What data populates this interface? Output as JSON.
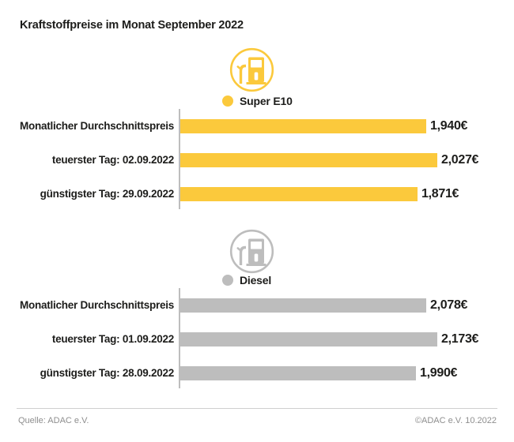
{
  "title": "Kraftstoffpreise im Monat September 2022",
  "colors": {
    "super_e10": "#FBC93C",
    "diesel": "#BDBDBD",
    "text": "#1D1D1B",
    "axis_line": "#BDBDBD",
    "footer_text": "#8E8E8E"
  },
  "chart_data": [
    {
      "type": "bar",
      "title": "Super E10",
      "icon": "fuel-pump-icon",
      "color": "#FBC93C",
      "legend_position": "top",
      "categories": [
        "Monatlicher Durchschnittspreis",
        "teuerster Tag: 02.09.2022",
        "günstigster Tag: 29.09.2022"
      ],
      "values": [
        1.94,
        2.027,
        1.871
      ],
      "value_labels": [
        "1,940€",
        "2,027€",
        "1,871€"
      ]
    },
    {
      "type": "bar",
      "title": "Diesel",
      "icon": "fuel-pump-icon",
      "color": "#BDBDBD",
      "legend_position": "top",
      "categories": [
        "Monatlicher Durchschnittspreis",
        "teuerster Tag: 01.09.2022",
        "günstigster Tag: 28.09.2022"
      ],
      "values": [
        2.078,
        2.173,
        1.99
      ],
      "value_labels": [
        "2,078€",
        "2,173€",
        "1,990€"
      ]
    }
  ],
  "footer": {
    "source": "Quelle: ADAC e.V.",
    "copyright": "©ADAC e.V. 10.2022"
  }
}
